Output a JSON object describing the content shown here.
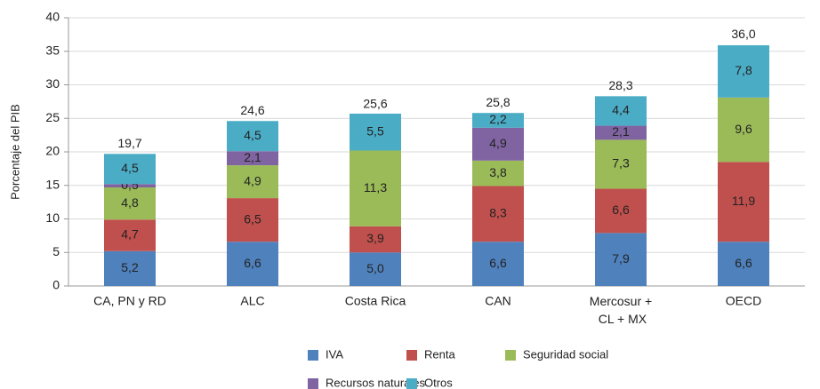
{
  "chart_data": {
    "type": "stacked_bar",
    "y_label": "Porcentaje del PIB",
    "categories": [
      "CA, PN y RD",
      "ALC",
      "Costa Rica",
      "CAN",
      "Mercosur + CL + MX",
      "OECD"
    ],
    "series": [
      {
        "name": "IVA",
        "color": "#4f81bd",
        "values": [
          5.2,
          6.6,
          5.0,
          6.6,
          7.9,
          6.6
        ],
        "value_labels": [
          "5,2",
          "6,6",
          "5,0",
          "6,6",
          "7,9",
          "6,6"
        ]
      },
      {
        "name": "Renta",
        "color": "#c0504d",
        "values": [
          4.7,
          6.5,
          3.9,
          8.3,
          6.6,
          11.9
        ],
        "value_labels": [
          "4,7",
          "6,5",
          "3,9",
          "8,3",
          "6,6",
          "11,9"
        ]
      },
      {
        "name": "Seguridad social",
        "color": "#9bbb59",
        "values": [
          4.8,
          4.9,
          11.3,
          3.8,
          7.3,
          9.6
        ],
        "value_labels": [
          "4,8",
          "4,9",
          "11,3",
          "3,8",
          "7,3",
          "9,6"
        ]
      },
      {
        "name": "Recursos naturales",
        "color": "#8064a2",
        "values": [
          0.5,
          2.1,
          null,
          4.9,
          2.1,
          null
        ],
        "value_labels": [
          "0,5",
          "2,1",
          null,
          "4,9",
          "2,1",
          null
        ]
      },
      {
        "name": "Otros",
        "color": "#4bacc6",
        "values": [
          4.5,
          4.5,
          5.5,
          2.2,
          4.4,
          7.8
        ],
        "value_labels": [
          "4,5",
          "4,5",
          "5,5",
          "2,2",
          "4,4",
          "7,8"
        ]
      }
    ],
    "totals": [
      19.7,
      24.6,
      25.6,
      25.8,
      28.3,
      36.0
    ],
    "total_labels": [
      "19,7",
      "24,6",
      "25,6",
      "25,8",
      "28,3",
      "36,0"
    ],
    "ylim": [
      0,
      40
    ],
    "yticks": [
      0,
      5,
      10,
      15,
      20,
      25,
      30,
      35,
      40
    ],
    "grid": true,
    "legend": "bottom"
  }
}
